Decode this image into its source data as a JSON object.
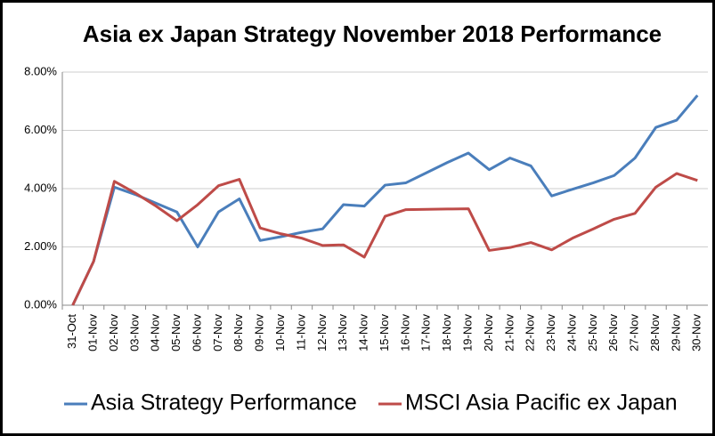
{
  "chart_data": {
    "type": "line",
    "title": "Asia ex Japan Strategy November 2018 Performance",
    "categories": [
      "31-Oct",
      "01-Nov",
      "02-Nov",
      "03-Nov",
      "04-Nov",
      "05-Nov",
      "06-Nov",
      "07-Nov",
      "08-Nov",
      "09-Nov",
      "10-Nov",
      "11-Nov",
      "12-Nov",
      "13-Nov",
      "14-Nov",
      "15-Nov",
      "16-Nov",
      "17-Nov",
      "18-Nov",
      "19-Nov",
      "20-Nov",
      "21-Nov",
      "22-Nov",
      "23-Nov",
      "24-Nov",
      "25-Nov",
      "26-Nov",
      "27-Nov",
      "28-Nov",
      "29-Nov",
      "30-Nov"
    ],
    "series": [
      {
        "name": "Asia Strategy Performance",
        "color": "#4a7ebb",
        "values": [
          0,
          1.5,
          4.05,
          3.8,
          3.5,
          3.2,
          2.0,
          3.2,
          3.65,
          2.22,
          2.35,
          2.5,
          2.62,
          3.45,
          3.4,
          4.12,
          4.2,
          4.55,
          4.9,
          5.22,
          4.65,
          5.05,
          4.78,
          3.75,
          3.98,
          4.2,
          4.45,
          5.05,
          6.1,
          6.35,
          7.2
        ]
      },
      {
        "name": "MSCI Asia Pacific ex Japan",
        "color": "#be4b48",
        "values": [
          0,
          1.5,
          4.25,
          3.85,
          3.4,
          2.9,
          3.45,
          4.1,
          4.32,
          2.65,
          2.45,
          2.3,
          2.05,
          2.07,
          1.65,
          3.05,
          3.28,
          3.29,
          3.3,
          3.31,
          1.88,
          1.98,
          2.15,
          1.9,
          2.3,
          2.62,
          2.95,
          3.15,
          4.05,
          4.52,
          4.28
        ]
      }
    ],
    "ylim": [
      0,
      8
    ],
    "yticks": [
      {
        "value": 0,
        "label": "0.00%"
      },
      {
        "value": 2,
        "label": "2.00%"
      },
      {
        "value": 4,
        "label": "4.00%"
      },
      {
        "value": 6,
        "label": "6.00%"
      },
      {
        "value": 8,
        "label": "8.00%"
      }
    ],
    "grid": true
  }
}
